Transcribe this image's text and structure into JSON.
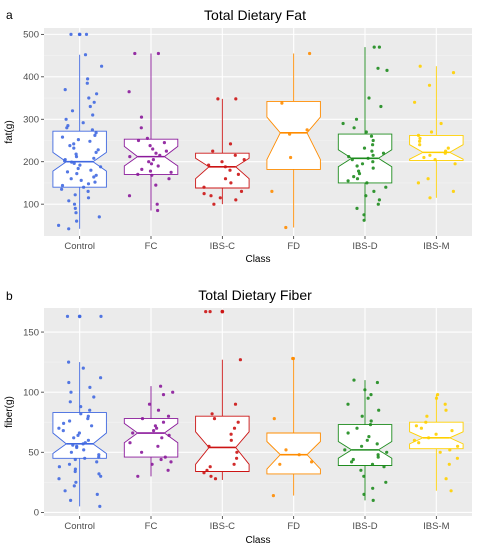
{
  "colors": {
    "panel_bg": "#ebebeb",
    "grid_major": "#ffffff",
    "grid_minor": "#f4f4f4",
    "Control": "#4169e1",
    "FC": "#8b1a9b",
    "IBS-C": "#cc1414",
    "FD": "#ff8c00",
    "IBS-D": "#1e8c1e",
    "IBS-M": "#ffd000"
  },
  "chart_data": [
    {
      "type": "box",
      "panel": "a",
      "title": "Total Dietary Fat",
      "xlabel": "Class",
      "ylabel": "fat(g)",
      "categories": [
        "Control",
        "FC",
        "IBS-C",
        "FD",
        "IBS-D",
        "IBS-M"
      ],
      "yticks": [
        100,
        200,
        300,
        400,
        500
      ],
      "ylim": [
        25,
        515
      ],
      "boxes": [
        {
          "q1": 140,
          "median": 200,
          "q3": 272,
          "notch_lo": 178,
          "notch_hi": 222,
          "whisker_lo": 42,
          "whisker_hi": 452,
          "outliers": [
            500
          ]
        },
        {
          "q1": 170,
          "median": 212,
          "q3": 253,
          "notch_lo": 190,
          "notch_hi": 236,
          "whisker_lo": 85,
          "whisker_hi": 455,
          "outliers": []
        },
        {
          "q1": 138,
          "median": 188,
          "q3": 220,
          "notch_lo": 160,
          "notch_hi": 208,
          "whisker_lo": 100,
          "whisker_hi": 348,
          "outliers": []
        },
        {
          "q1": 182,
          "median": 268,
          "q3": 342,
          "notch_lo": 205,
          "notch_hi": 305,
          "whisker_lo": 45,
          "whisker_hi": 455,
          "outliers": []
        },
        {
          "q1": 150,
          "median": 208,
          "q3": 265,
          "notch_lo": 188,
          "notch_hi": 228,
          "whisker_lo": 62,
          "whisker_hi": 470,
          "outliers": []
        },
        {
          "q1": 203,
          "median": 222,
          "q3": 262,
          "notch_lo": 206,
          "notch_hi": 240,
          "whisker_lo": 115,
          "whisker_hi": 425,
          "outliers": []
        }
      ],
      "points": [
        [
          500,
          500,
          452,
          425,
          395,
          385,
          370,
          360,
          350,
          340,
          330,
          320,
          310,
          300,
          292,
          285,
          280,
          275,
          268,
          262,
          258,
          252,
          248,
          242,
          238,
          232,
          228,
          222,
          218,
          212,
          208,
          205,
          202,
          199,
          196,
          192,
          188,
          184,
          180,
          176,
          172,
          168,
          164,
          160,
          156,
          152,
          148,
          144,
          140,
          135,
          130,
          122,
          115,
          108,
          100,
          90,
          80,
          70,
          60,
          50,
          42
        ],
        [
          455,
          455,
          365,
          305,
          280,
          255,
          250,
          245,
          238,
          230,
          225,
          220,
          215,
          212,
          205,
          200,
          195,
          190,
          182,
          178,
          175,
          170,
          168,
          160,
          145,
          120,
          100,
          85
        ],
        [
          348,
          348,
          242,
          225,
          215,
          205,
          200,
          192,
          188,
          180,
          170,
          160,
          150,
          140,
          130,
          125,
          120,
          115,
          110,
          100
        ],
        [
          455,
          338,
          275,
          265,
          210,
          130,
          45
        ],
        [
          470,
          470,
          420,
          415,
          350,
          330,
          300,
          290,
          280,
          270,
          260,
          250,
          240,
          232,
          225,
          220,
          215,
          212,
          208,
          205,
          200,
          195,
          190,
          185,
          178,
          172,
          165,
          160,
          155,
          150,
          140,
          130,
          120,
          110,
          100,
          90,
          75,
          62
        ],
        [
          425,
          410,
          380,
          340,
          290,
          270,
          262,
          255,
          248,
          240,
          232,
          225,
          220,
          215,
          210,
          205,
          195,
          160,
          150,
          130,
          115
        ]
      ]
    },
    {
      "type": "box",
      "panel": "b",
      "title": "Total Dietary Fiber",
      "xlabel": "Class",
      "ylabel": "fiber(g)",
      "categories": [
        "Control",
        "FC",
        "IBS-C",
        "FD",
        "IBS-D",
        "IBS-M"
      ],
      "yticks": [
        0,
        50,
        100,
        150
      ],
      "ylim": [
        -3,
        170
      ],
      "boxes": [
        {
          "q1": 45,
          "median": 57,
          "q3": 83,
          "notch_lo": 49,
          "notch_hi": 66,
          "whisker_lo": 5,
          "whisker_hi": 125,
          "outliers": [
            163
          ]
        },
        {
          "q1": 46,
          "median": 66,
          "q3": 78,
          "notch_lo": 58,
          "notch_hi": 74,
          "whisker_lo": 30,
          "whisker_hi": 105,
          "outliers": []
        },
        {
          "q1": 34,
          "median": 54,
          "q3": 80,
          "notch_lo": 40,
          "notch_hi": 67,
          "whisker_lo": 27,
          "whisker_hi": 127,
          "outliers": [
            167
          ]
        },
        {
          "q1": 32,
          "median": 48,
          "q3": 66,
          "notch_lo": 36,
          "notch_hi": 59,
          "whisker_lo": 14,
          "whisker_hi": 128,
          "outliers": []
        },
        {
          "q1": 39,
          "median": 52,
          "q3": 73,
          "notch_lo": 45,
          "notch_hi": 59,
          "whisker_lo": 10,
          "whisker_hi": 110,
          "outliers": []
        },
        {
          "q1": 53,
          "median": 62,
          "q3": 75,
          "notch_lo": 57,
          "notch_hi": 67,
          "whisker_lo": 18,
          "whisker_hi": 98,
          "outliers": []
        }
      ],
      "points": [
        [
          163,
          163,
          125,
          120,
          112,
          108,
          104,
          100,
          96,
          92,
          88,
          85,
          82,
          80,
          78,
          76,
          74,
          72,
          70,
          68,
          66,
          64,
          62,
          60,
          58,
          57,
          56,
          55,
          54,
          52,
          50,
          48,
          46,
          45,
          44,
          42,
          40,
          38,
          36,
          34,
          32,
          30,
          28,
          25,
          22,
          18,
          15,
          10,
          5
        ],
        [
          105,
          100,
          98,
          90,
          85,
          80,
          78,
          75,
          72,
          70,
          68,
          66,
          64,
          62,
          58,
          55,
          50,
          46,
          44,
          42,
          40,
          35,
          30
        ],
        [
          167,
          167,
          127,
          90,
          82,
          78,
          75,
          70,
          65,
          60,
          55,
          50,
          45,
          40,
          38,
          35,
          33,
          30,
          28
        ],
        [
          128,
          128,
          78,
          52,
          48,
          42,
          40,
          14
        ],
        [
          110,
          108,
          102,
          98,
          95,
          90,
          85,
          80,
          76,
          73,
          70,
          66,
          63,
          60,
          57,
          55,
          52,
          50,
          48,
          46,
          44,
          42,
          40,
          38,
          35,
          30,
          25,
          20,
          15,
          10
        ],
        [
          98,
          95,
          90,
          85,
          80,
          75,
          72,
          70,
          68,
          65,
          62,
          60,
          58,
          55,
          52,
          50,
          45,
          40,
          28,
          18
        ]
      ]
    }
  ]
}
